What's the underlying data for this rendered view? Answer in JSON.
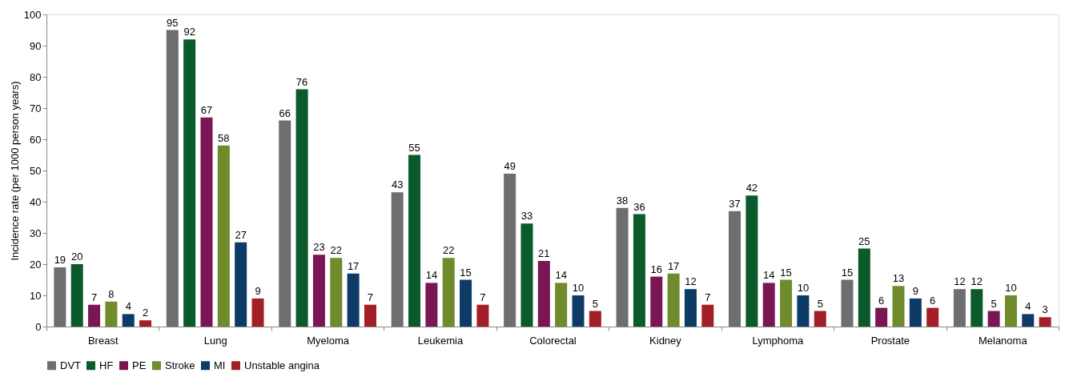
{
  "chart_data": {
    "type": "bar",
    "ylabel": "Incidence rate  (per 1000 person years)",
    "categories": [
      "Breast",
      "Lung",
      "Myeloma",
      "Leukemia",
      "Colorectal",
      "Kidney",
      "Lymphoma",
      "Prostate",
      "Melanoma"
    ],
    "series": [
      {
        "name": "DVT",
        "color": "#6d6e70",
        "values": [
          19,
          95,
          66,
          43,
          49,
          38,
          37,
          15,
          12
        ]
      },
      {
        "name": "HF",
        "color": "#0b5a2c",
        "values": [
          20,
          92,
          76,
          55,
          33,
          36,
          42,
          25,
          12
        ]
      },
      {
        "name": "PE",
        "color": "#7a1653",
        "values": [
          7,
          67,
          23,
          14,
          21,
          16,
          14,
          6,
          5
        ]
      },
      {
        "name": "Stroke",
        "color": "#6f8b2b",
        "values": [
          8,
          58,
          22,
          22,
          14,
          17,
          15,
          13,
          10
        ]
      },
      {
        "name": "MI",
        "color": "#0e3a66",
        "values": [
          4,
          27,
          17,
          15,
          10,
          12,
          10,
          9,
          4
        ]
      },
      {
        "name": "Unstable angina",
        "color": "#a21f25",
        "values": [
          2,
          9,
          7,
          7,
          5,
          7,
          5,
          6,
          3
        ]
      }
    ],
    "ylim": [
      0,
      100
    ],
    "yticks": [
      0,
      10,
      20,
      30,
      40,
      50,
      60,
      70,
      80,
      90,
      100
    ],
    "grid": false,
    "legend": "bottom",
    "data_labels": true
  }
}
